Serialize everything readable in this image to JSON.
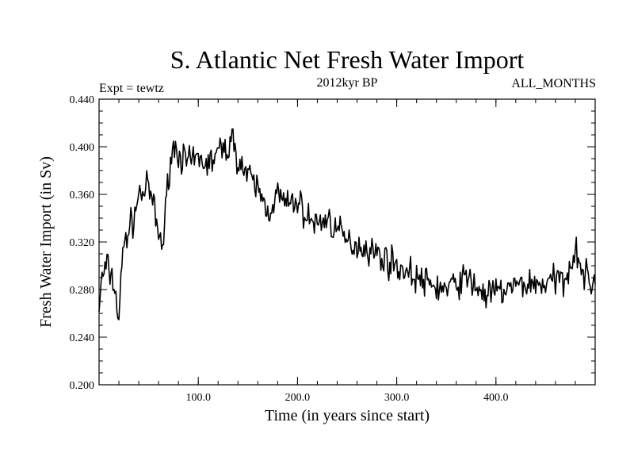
{
  "chart_data": {
    "type": "line",
    "title": "S. Atlantic Net Fresh Water Import",
    "subtitle": "2012kyr BP",
    "left_label": "Expt = tewtz",
    "right_label": "ALL_MONTHS",
    "xlabel": "Time (in years since start)",
    "ylabel": "Fresh Water Import (in Sv)",
    "xlim": [
      0,
      500
    ],
    "ylim": [
      0.2,
      0.44
    ],
    "x_ticks": [
      100,
      200,
      300,
      400
    ],
    "x_tick_labels": [
      "100.0",
      "200.0",
      "300.0",
      "400.0"
    ],
    "y_ticks": [
      0.2,
      0.24,
      0.28,
      0.32,
      0.36,
      0.4,
      0.44
    ],
    "y_tick_labels": [
      "0.200",
      "0.240",
      "0.280",
      "0.320",
      "0.360",
      "0.400",
      "0.440"
    ],
    "grid": false,
    "series": [
      {
        "name": "Net fresh water import",
        "color": "#000000",
        "anchors_x": [
          0,
          3,
          8,
          15,
          20,
          22,
          25,
          30,
          35,
          40,
          50,
          55,
          60,
          65,
          70,
          75,
          80,
          90,
          100,
          110,
          120,
          130,
          135,
          140,
          150,
          160,
          165,
          170,
          180,
          190,
          200,
          210,
          220,
          230,
          250,
          270,
          300,
          330,
          350,
          370,
          390,
          410,
          430,
          450,
          470,
          480,
          490,
          500
        ],
        "anchors_y": [
          0.265,
          0.29,
          0.3,
          0.285,
          0.255,
          0.285,
          0.32,
          0.33,
          0.34,
          0.36,
          0.365,
          0.35,
          0.325,
          0.32,
          0.38,
          0.4,
          0.395,
          0.385,
          0.39,
          0.385,
          0.395,
          0.4,
          0.405,
          0.39,
          0.375,
          0.365,
          0.355,
          0.345,
          0.36,
          0.35,
          0.355,
          0.34,
          0.335,
          0.34,
          0.32,
          0.315,
          0.3,
          0.285,
          0.28,
          0.29,
          0.275,
          0.28,
          0.285,
          0.285,
          0.29,
          0.315,
          0.29,
          0.285
        ],
        "noise_amplitude": 0.012,
        "step_years": 1
      }
    ]
  }
}
